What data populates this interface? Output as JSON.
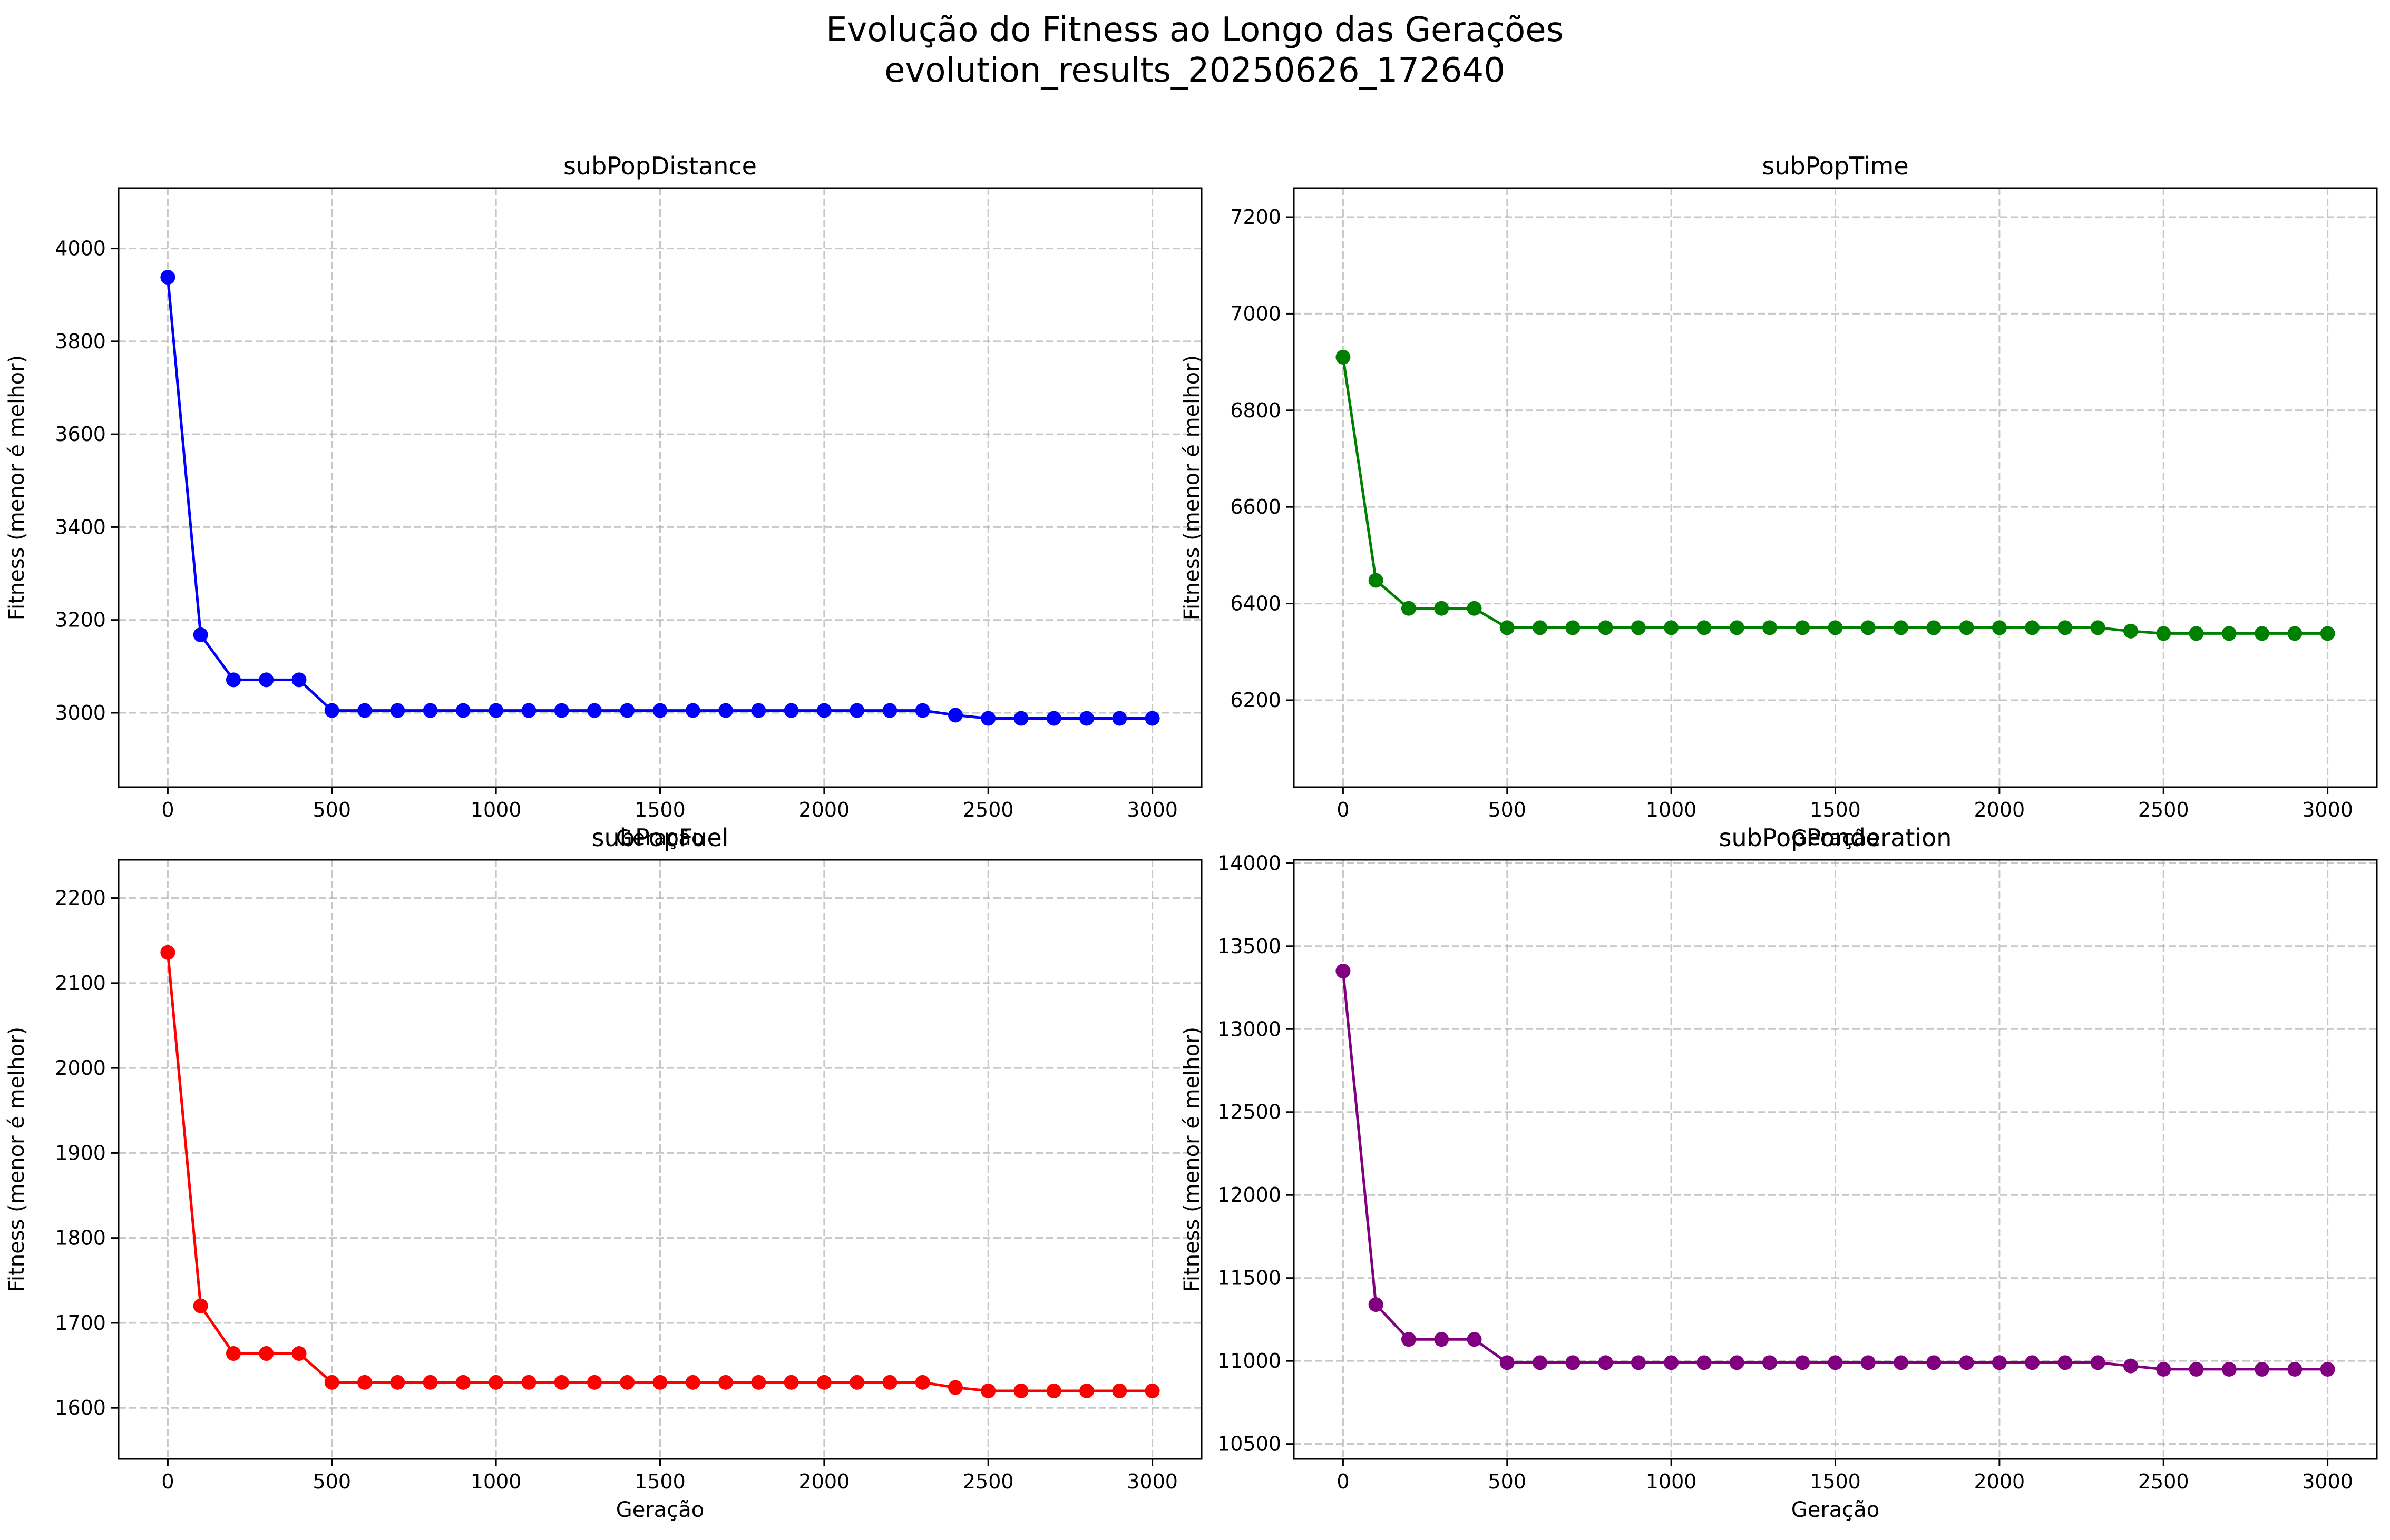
{
  "figure": {
    "title_line1": "Evolução do Fitness ao Longo das Gerações",
    "title_line2": "evolution_results_20250626_172640"
  },
  "chart_data": [
    {
      "type": "line",
      "title": "subPopDistance",
      "xlabel": "Geração",
      "ylabel": "Fitness (menor é melhor)",
      "color": "#0000ff",
      "grid": true,
      "xlim": [
        -150,
        3150
      ],
      "ylim": [
        2840,
        4130
      ],
      "xticks": [
        0,
        500,
        1000,
        1500,
        2000,
        2500,
        3000
      ],
      "yticks": [
        3000,
        3200,
        3400,
        3600,
        3800,
        4000
      ],
      "x": [
        0,
        100,
        200,
        300,
        400,
        500,
        600,
        700,
        800,
        900,
        1000,
        1100,
        1200,
        1300,
        1400,
        1500,
        1600,
        1700,
        1800,
        1900,
        2000,
        2100,
        2200,
        2300,
        2400,
        2500,
        2600,
        2700,
        2800,
        2900,
        3000
      ],
      "y": [
        3938,
        3168,
        3071,
        3071,
        3071,
        3005,
        3005,
        3005,
        3005,
        3005,
        3005,
        3005,
        3005,
        3005,
        3005,
        3005,
        3005,
        3005,
        3005,
        3005,
        3005,
        3005,
        3005,
        3005,
        2995,
        2988,
        2988,
        2988,
        2988,
        2988,
        2988
      ]
    },
    {
      "type": "line",
      "title": "subPopTime",
      "xlabel": "Geração",
      "ylabel": "Fitness (menor é melhor)",
      "color": "#008000",
      "grid": true,
      "xlim": [
        -150,
        3150
      ],
      "ylim": [
        6020,
        7260
      ],
      "xticks": [
        0,
        500,
        1000,
        1500,
        2000,
        2500,
        3000
      ],
      "yticks": [
        6200,
        6400,
        6600,
        6800,
        7000,
        7200
      ],
      "x": [
        0,
        100,
        200,
        300,
        400,
        500,
        600,
        700,
        800,
        900,
        1000,
        1100,
        1200,
        1300,
        1400,
        1500,
        1600,
        1700,
        1800,
        1900,
        2000,
        2100,
        2200,
        2300,
        2400,
        2500,
        2600,
        2700,
        2800,
        2900,
        3000
      ],
      "y": [
        6910,
        6448,
        6390,
        6390,
        6390,
        6350,
        6350,
        6350,
        6350,
        6350,
        6350,
        6350,
        6350,
        6350,
        6350,
        6350,
        6350,
        6350,
        6350,
        6350,
        6350,
        6350,
        6350,
        6350,
        6343,
        6338,
        6338,
        6338,
        6338,
        6338,
        6338
      ]
    },
    {
      "type": "line",
      "title": "subPopFuel",
      "xlabel": "Geração",
      "ylabel": "Fitness (menor é melhor)",
      "color": "#ff0000",
      "grid": true,
      "xlim": [
        -150,
        3150
      ],
      "ylim": [
        1540,
        2245
      ],
      "xticks": [
        0,
        500,
        1000,
        1500,
        2000,
        2500,
        3000
      ],
      "yticks": [
        1600,
        1700,
        1800,
        1900,
        2000,
        2100,
        2200
      ],
      "x": [
        0,
        100,
        200,
        300,
        400,
        500,
        600,
        700,
        800,
        900,
        1000,
        1100,
        1200,
        1300,
        1400,
        1500,
        1600,
        1700,
        1800,
        1900,
        2000,
        2100,
        2200,
        2300,
        2400,
        2500,
        2600,
        2700,
        2800,
        2900,
        3000
      ],
      "y": [
        2136,
        1720,
        1664,
        1664,
        1664,
        1630,
        1630,
        1630,
        1630,
        1630,
        1630,
        1630,
        1630,
        1630,
        1630,
        1630,
        1630,
        1630,
        1630,
        1630,
        1630,
        1630,
        1630,
        1630,
        1624,
        1620,
        1620,
        1620,
        1620,
        1620,
        1620
      ]
    },
    {
      "type": "line",
      "title": "subPopPonderation",
      "xlabel": "Geração",
      "ylabel": "Fitness (menor é melhor)",
      "color": "#800080",
      "grid": true,
      "xlim": [
        -150,
        3150
      ],
      "ylim": [
        10410,
        14020
      ],
      "xticks": [
        0,
        500,
        1000,
        1500,
        2000,
        2500,
        3000
      ],
      "yticks": [
        10500,
        11000,
        11500,
        12000,
        12500,
        13000,
        13500,
        14000
      ],
      "x": [
        0,
        100,
        200,
        300,
        400,
        500,
        600,
        700,
        800,
        900,
        1000,
        1100,
        1200,
        1300,
        1400,
        1500,
        1600,
        1700,
        1800,
        1900,
        2000,
        2100,
        2200,
        2300,
        2400,
        2500,
        2600,
        2700,
        2800,
        2900,
        3000
      ],
      "y": [
        13350,
        11340,
        11130,
        11130,
        11130,
        10990,
        10990,
        10990,
        10990,
        10990,
        10990,
        10990,
        10990,
        10990,
        10990,
        10990,
        10990,
        10990,
        10990,
        10990,
        10990,
        10990,
        10990,
        10990,
        10970,
        10950,
        10950,
        10950,
        10950,
        10950,
        10950
      ]
    }
  ]
}
